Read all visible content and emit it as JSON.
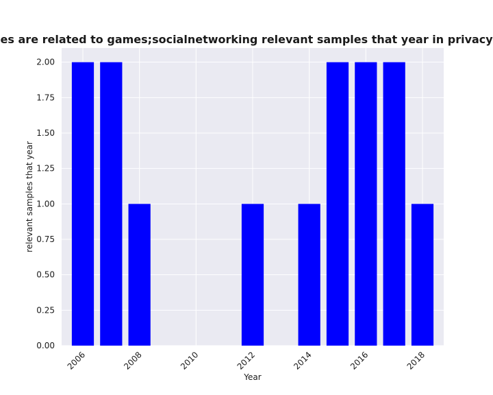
{
  "chart_data": {
    "type": "bar",
    "title": "categories are related to games;socialnetworking relevant samples that year in privacy policies",
    "xlabel": "Year",
    "ylabel": "relevant samples that year",
    "x": [
      2006,
      2007,
      2008,
      2012,
      2014,
      2015,
      2016,
      2017,
      2018
    ],
    "values": [
      2,
      2,
      1,
      1,
      1,
      2,
      2,
      2,
      1
    ],
    "xlim": [
      2005.25,
      2018.75
    ],
    "ylim": [
      0,
      2.1
    ],
    "xticks": [
      "2006",
      "2008",
      "2010",
      "2012",
      "2014",
      "2016",
      "2018"
    ],
    "yticks": [
      "0.00",
      "0.25",
      "0.50",
      "0.75",
      "1.00",
      "1.25",
      "1.50",
      "1.75",
      "2.00"
    ],
    "grid": true,
    "colors": {
      "bar": "#0000ff",
      "plot_background": "#eaeaf2",
      "grid": "#ffffff"
    }
  }
}
